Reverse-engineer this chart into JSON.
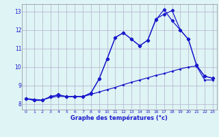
{
  "title": "Graphe des températures (°c)",
  "bg_color": "#dff4f4",
  "grid_color": "#b0b0cc",
  "line_color": "#1a1acc",
  "xlim": [
    -0.5,
    23.5
  ],
  "ylim": [
    7.7,
    13.4
  ],
  "xticks": [
    0,
    1,
    2,
    3,
    4,
    5,
    6,
    7,
    8,
    9,
    10,
    11,
    12,
    13,
    14,
    15,
    16,
    17,
    18,
    19,
    20,
    21,
    22,
    23
  ],
  "yticks": [
    8,
    9,
    10,
    11,
    12,
    13
  ],
  "series1_x": [
    0,
    1,
    2,
    3,
    4,
    5,
    6,
    7,
    8,
    9,
    10,
    11,
    12,
    13,
    14,
    15,
    16,
    17,
    18,
    19,
    20,
    21,
    22,
    23
  ],
  "series1_y": [
    8.3,
    8.2,
    8.2,
    8.4,
    8.5,
    8.4,
    8.4,
    8.4,
    8.6,
    9.35,
    10.45,
    11.6,
    11.85,
    11.5,
    11.15,
    11.45,
    12.6,
    12.85,
    13.05,
    12.0,
    11.5,
    10.1,
    9.5,
    9.4
  ],
  "series2_x": [
    0,
    1,
    2,
    3,
    4,
    5,
    6,
    7,
    8,
    9,
    10,
    11,
    12,
    13,
    14,
    15,
    16,
    17,
    18,
    19,
    20,
    21,
    22,
    23
  ],
  "series2_y": [
    8.3,
    8.2,
    8.2,
    8.4,
    8.5,
    8.4,
    8.4,
    8.4,
    8.6,
    9.35,
    10.45,
    11.6,
    11.85,
    11.5,
    11.15,
    11.45,
    12.55,
    13.1,
    12.5,
    12.0,
    11.5,
    10.1,
    9.5,
    9.4
  ],
  "series3_x": [
    0,
    1,
    2,
    3,
    4,
    5,
    6,
    7,
    8,
    9,
    10,
    11,
    12,
    13,
    14,
    15,
    16,
    17,
    18,
    19,
    20,
    21,
    22,
    23
  ],
  "series3_y": [
    8.3,
    8.25,
    8.22,
    8.35,
    8.42,
    8.4,
    8.4,
    8.4,
    8.52,
    8.65,
    8.78,
    8.9,
    9.05,
    9.18,
    9.3,
    9.42,
    9.55,
    9.65,
    9.78,
    9.9,
    10.0,
    10.05,
    9.3,
    9.3
  ],
  "tick_fontsize": 5,
  "label_fontsize": 6
}
